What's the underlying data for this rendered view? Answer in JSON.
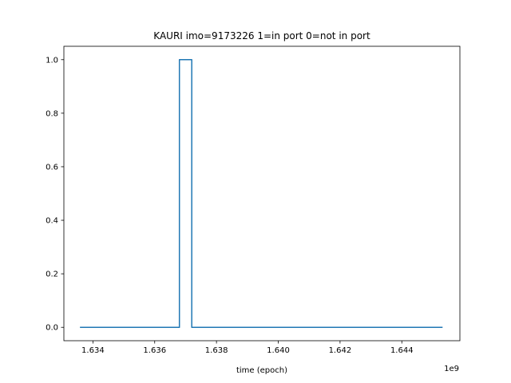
{
  "chart_data": {
    "type": "line",
    "title": "KAURI imo=9173226 1=in port 0=not in port",
    "xlabel": "time (epoch)",
    "ylabel": "",
    "x_offset_label": "1e9",
    "xlim": [
      1.63306,
      1.64588
    ],
    "ylim": [
      -0.05,
      1.05
    ],
    "x_ticks": [
      1.634,
      1.636,
      1.638,
      1.64,
      1.642,
      1.644
    ],
    "x_tick_labels": [
      "1.634",
      "1.636",
      "1.638",
      "1.640",
      "1.642",
      "1.644"
    ],
    "y_ticks": [
      0.0,
      0.2,
      0.4,
      0.6,
      0.8,
      1.0
    ],
    "y_tick_labels": [
      "0.0",
      "0.2",
      "0.4",
      "0.6",
      "0.8",
      "1.0"
    ],
    "grid": false,
    "series": [
      {
        "name": "in port",
        "color": "#1f77b4",
        "x": [
          1.6336,
          1.6368,
          1.6368,
          1.6372,
          1.6372,
          1.6453
        ],
        "y": [
          0,
          0,
          1,
          1,
          0,
          0
        ]
      }
    ]
  }
}
